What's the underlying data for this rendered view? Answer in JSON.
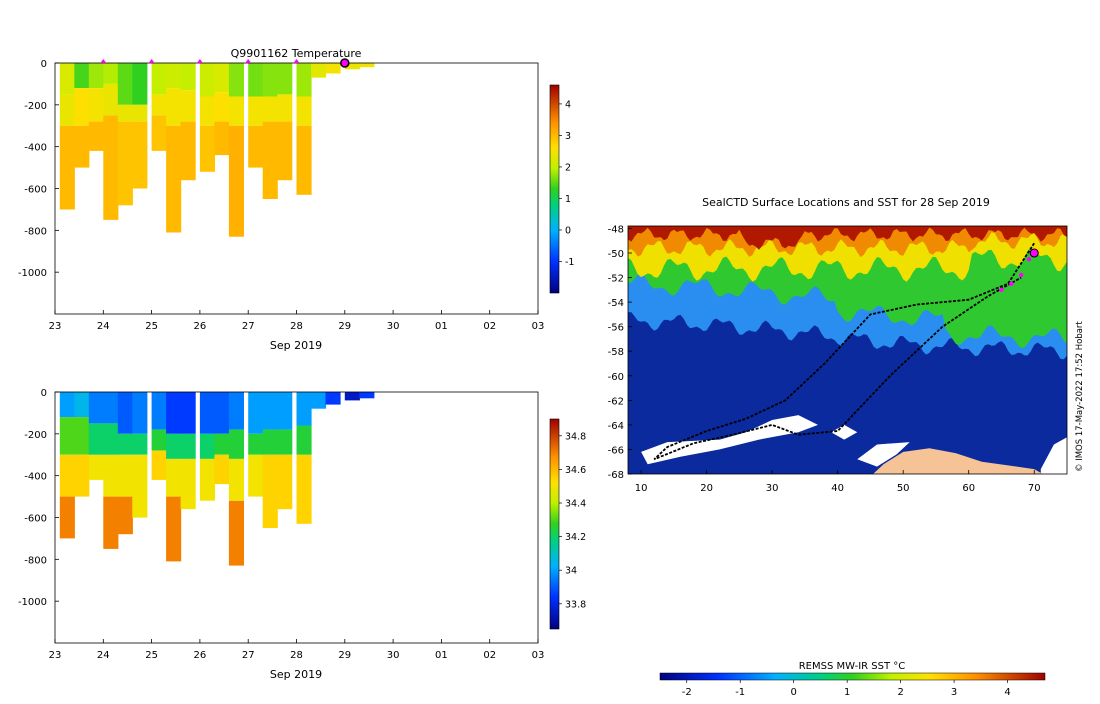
{
  "chart_data": [
    {
      "type": "heatmap",
      "title": "Q9901162  Temperature",
      "xlabel": "Sep 2019",
      "ylabel": "",
      "x_ticks": [
        "23",
        "24",
        "25",
        "26",
        "27",
        "28",
        "29",
        "30",
        "01",
        "02",
        "03"
      ],
      "y_ticks": [
        0,
        -200,
        -400,
        -600,
        -800,
        -1000
      ],
      "ylim": [
        -1200,
        0
      ],
      "colorbar": {
        "ticks": [
          4,
          3,
          2,
          1,
          0,
          -1
        ],
        "range": [
          -2,
          4.6
        ]
      },
      "profile_markers_day": [
        24,
        25,
        26,
        27,
        28
      ],
      "current_marker_day": 29,
      "profiles": [
        {
          "day": 23.1,
          "bottom": -700,
          "layers": [
            {
              "top": 0,
              "value": 2.2
            },
            {
              "top": -150,
              "value": 2.4
            },
            {
              "top": -300,
              "value": 3.0
            }
          ]
        },
        {
          "day": 23.4,
          "bottom": -500,
          "layers": [
            {
              "top": 0,
              "value": 1.4
            },
            {
              "top": -120,
              "value": 2.6
            },
            {
              "top": -300,
              "value": 3.0
            }
          ]
        },
        {
          "day": 23.7,
          "bottom": -420,
          "layers": [
            {
              "top": 0,
              "value": 1.8
            },
            {
              "top": -120,
              "value": 2.5
            },
            {
              "top": -280,
              "value": 3.0
            }
          ]
        },
        {
          "day": 24.0,
          "bottom": -750,
          "layers": [
            {
              "top": 0,
              "value": 1.9
            },
            {
              "top": -100,
              "value": 2.4
            },
            {
              "top": -250,
              "value": 3.0
            }
          ]
        },
        {
          "day": 24.3,
          "bottom": -680,
          "layers": [
            {
              "top": 0,
              "value": 1.5
            },
            {
              "top": -200,
              "value": 2.4
            },
            {
              "top": -280,
              "value": 2.9
            }
          ]
        },
        {
          "day": 24.6,
          "bottom": -600,
          "layers": [
            {
              "top": 0,
              "value": 1.3
            },
            {
              "top": -200,
              "value": 2.4
            },
            {
              "top": -280,
              "value": 2.9
            }
          ]
        },
        {
          "day": 25.0,
          "bottom": -420,
          "layers": [
            {
              "top": 0,
              "value": 2.0
            },
            {
              "top": -150,
              "value": 2.5
            },
            {
              "top": -250,
              "value": 2.9
            }
          ]
        },
        {
          "day": 25.3,
          "bottom": -810,
          "layers": [
            {
              "top": 0,
              "value": 2.1
            },
            {
              "top": -120,
              "value": 2.5
            },
            {
              "top": -300,
              "value": 3.0
            }
          ]
        },
        {
          "day": 25.6,
          "bottom": -560,
          "layers": [
            {
              "top": 0,
              "value": 2.0
            },
            {
              "top": -130,
              "value": 2.5
            },
            {
              "top": -280,
              "value": 3.0
            }
          ]
        },
        {
          "day": 26.0,
          "bottom": -520,
          "layers": [
            {
              "top": 0,
              "value": 2.1
            },
            {
              "top": -160,
              "value": 2.5
            },
            {
              "top": -300,
              "value": 2.9
            }
          ]
        },
        {
          "day": 26.3,
          "bottom": -440,
          "layers": [
            {
              "top": 0,
              "value": 2.2
            },
            {
              "top": -140,
              "value": 2.6
            },
            {
              "top": -280,
              "value": 3.0
            }
          ]
        },
        {
          "day": 26.6,
          "bottom": -830,
          "layers": [
            {
              "top": 0,
              "value": 1.7
            },
            {
              "top": -160,
              "value": 2.5
            },
            {
              "top": -300,
              "value": 3.1
            }
          ]
        },
        {
          "day": 27.0,
          "bottom": -500,
          "layers": [
            {
              "top": 0,
              "value": 1.6
            },
            {
              "top": -160,
              "value": 2.5
            },
            {
              "top": -300,
              "value": 3.0
            }
          ]
        },
        {
          "day": 27.3,
          "bottom": -650,
          "layers": [
            {
              "top": 0,
              "value": 1.7
            },
            {
              "top": -160,
              "value": 2.5
            },
            {
              "top": -280,
              "value": 3.0
            }
          ]
        },
        {
          "day": 27.6,
          "bottom": -560,
          "layers": [
            {
              "top": 0,
              "value": 1.7
            },
            {
              "top": -150,
              "value": 2.5
            },
            {
              "top": -280,
              "value": 3.0
            }
          ]
        },
        {
          "day": 28.0,
          "bottom": -630,
          "layers": [
            {
              "top": 0,
              "value": 1.8
            },
            {
              "top": -160,
              "value": 2.5
            },
            {
              "top": -300,
              "value": 3.0
            }
          ]
        },
        {
          "day": 28.3,
          "bottom": -70,
          "layers": [
            {
              "top": 0,
              "value": 2.3
            }
          ]
        },
        {
          "day": 28.6,
          "bottom": -50,
          "layers": [
            {
              "top": 0,
              "value": 2.5
            }
          ]
        },
        {
          "day": 29.0,
          "bottom": -30,
          "layers": [
            {
              "top": 0,
              "value": 2.4
            }
          ]
        },
        {
          "day": 29.3,
          "bottom": -20,
          "layers": [
            {
              "top": 0,
              "value": 2.5
            }
          ]
        }
      ]
    },
    {
      "type": "heatmap",
      "title": "",
      "xlabel": "Sep 2019",
      "ylabel": "",
      "x_ticks": [
        "23",
        "24",
        "25",
        "26",
        "27",
        "28",
        "29",
        "30",
        "01",
        "02",
        "03"
      ],
      "y_ticks": [
        0,
        -200,
        -400,
        -600,
        -800,
        -1000
      ],
      "ylim": [
        -1200,
        0
      ],
      "colorbar": {
        "ticks": [
          34.8,
          34.6,
          34.4,
          34.2,
          34,
          33.8
        ],
        "range": [
          33.65,
          34.9
        ]
      },
      "profiles": [
        {
          "day": 23.1,
          "bottom": -700,
          "layers": [
            {
              "top": 0,
              "value": 34.0
            },
            {
              "top": -120,
              "value": 34.3
            },
            {
              "top": -300,
              "value": 34.55
            },
            {
              "top": -500,
              "value": 34.7
            }
          ]
        },
        {
          "day": 23.4,
          "bottom": -500,
          "layers": [
            {
              "top": 0,
              "value": 34.05
            },
            {
              "top": -120,
              "value": 34.3
            },
            {
              "top": -300,
              "value": 34.55
            }
          ]
        },
        {
          "day": 23.7,
          "bottom": -420,
          "layers": [
            {
              "top": 0,
              "value": 33.95
            },
            {
              "top": -150,
              "value": 34.2
            },
            {
              "top": -300,
              "value": 34.5
            }
          ]
        },
        {
          "day": 24.0,
          "bottom": -750,
          "layers": [
            {
              "top": 0,
              "value": 33.95
            },
            {
              "top": -150,
              "value": 34.2
            },
            {
              "top": -300,
              "value": 34.5
            },
            {
              "top": -500,
              "value": 34.7
            }
          ]
        },
        {
          "day": 24.3,
          "bottom": -680,
          "layers": [
            {
              "top": 0,
              "value": 33.9
            },
            {
              "top": -200,
              "value": 34.2
            },
            {
              "top": -300,
              "value": 34.5
            },
            {
              "top": -500,
              "value": 34.7
            }
          ]
        },
        {
          "day": 24.6,
          "bottom": -600,
          "layers": [
            {
              "top": 0,
              "value": 33.95
            },
            {
              "top": -200,
              "value": 34.2
            },
            {
              "top": -300,
              "value": 34.5
            }
          ]
        },
        {
          "day": 25.0,
          "bottom": -420,
          "layers": [
            {
              "top": 0,
              "value": 33.95
            },
            {
              "top": -180,
              "value": 34.25
            },
            {
              "top": -280,
              "value": 34.55
            }
          ]
        },
        {
          "day": 25.3,
          "bottom": -810,
          "layers": [
            {
              "top": 0,
              "value": 33.85
            },
            {
              "top": -200,
              "value": 34.2
            },
            {
              "top": -320,
              "value": 34.5
            },
            {
              "top": -500,
              "value": 34.7
            }
          ]
        },
        {
          "day": 25.6,
          "bottom": -560,
          "layers": [
            {
              "top": 0,
              "value": 33.85
            },
            {
              "top": -200,
              "value": 34.2
            },
            {
              "top": -320,
              "value": 34.5
            }
          ]
        },
        {
          "day": 26.0,
          "bottom": -520,
          "layers": [
            {
              "top": 0,
              "value": 33.9
            },
            {
              "top": -200,
              "value": 34.2
            },
            {
              "top": -320,
              "value": 34.5
            }
          ]
        },
        {
          "day": 26.3,
          "bottom": -440,
          "layers": [
            {
              "top": 0,
              "value": 33.9
            },
            {
              "top": -200,
              "value": 34.25
            },
            {
              "top": -300,
              "value": 34.55
            }
          ]
        },
        {
          "day": 26.6,
          "bottom": -830,
          "layers": [
            {
              "top": 0,
              "value": 33.95
            },
            {
              "top": -180,
              "value": 34.25
            },
            {
              "top": -320,
              "value": 34.5
            },
            {
              "top": -520,
              "value": 34.7
            }
          ]
        },
        {
          "day": 27.0,
          "bottom": -500,
          "layers": [
            {
              "top": 0,
              "value": 34.0
            },
            {
              "top": -200,
              "value": 34.25
            },
            {
              "top": -300,
              "value": 34.5
            }
          ]
        },
        {
          "day": 27.3,
          "bottom": -650,
          "layers": [
            {
              "top": 0,
              "value": 34.0
            },
            {
              "top": -180,
              "value": 34.25
            },
            {
              "top": -300,
              "value": 34.55
            }
          ]
        },
        {
          "day": 27.6,
          "bottom": -560,
          "layers": [
            {
              "top": 0,
              "value": 34.0
            },
            {
              "top": -180,
              "value": 34.25
            },
            {
              "top": -300,
              "value": 34.55
            }
          ]
        },
        {
          "day": 28.0,
          "bottom": -630,
          "layers": [
            {
              "top": 0,
              "value": 34.0
            },
            {
              "top": -160,
              "value": 34.25
            },
            {
              "top": -300,
              "value": 34.55
            }
          ]
        },
        {
          "day": 28.3,
          "bottom": -80,
          "layers": [
            {
              "top": 0,
              "value": 34.0
            }
          ]
        },
        {
          "day": 28.6,
          "bottom": -60,
          "layers": [
            {
              "top": 0,
              "value": 33.85
            }
          ]
        },
        {
          "day": 29.0,
          "bottom": -40,
          "layers": [
            {
              "top": 0,
              "value": 33.75
            }
          ]
        },
        {
          "day": 29.3,
          "bottom": -30,
          "layers": [
            {
              "top": 0,
              "value": 33.85
            }
          ]
        }
      ]
    },
    {
      "type": "heatmap",
      "title": "SealCTD Surface Locations and SST for 28 Sep 2019",
      "xlabel": "",
      "ylabel": "",
      "x_ticks": [
        10,
        20,
        30,
        40,
        50,
        60,
        70
      ],
      "y_ticks": [
        -48,
        -50,
        -52,
        -54,
        -56,
        -58,
        -60,
        -62,
        -64,
        -66,
        -68
      ],
      "xlim": [
        8,
        75
      ],
      "ylim": [
        -68,
        -47.8
      ],
      "colorbar": {
        "label": "REMSS MW-IR SST °C",
        "ticks": [
          -2,
          -1,
          0,
          1,
          2,
          3,
          4
        ],
        "range": [
          -2.5,
          4.7
        ]
      },
      "sst_front_lat": [
        {
          "lon": 8,
          "lat": -55.5
        },
        {
          "lon": 20,
          "lat": -55.8
        },
        {
          "lon": 35,
          "lat": -56.5
        },
        {
          "lon": 45,
          "lat": -57.2
        },
        {
          "lon": 55,
          "lat": -57.6
        },
        {
          "lon": 65,
          "lat": -57.8
        },
        {
          "lon": 75,
          "lat": -58.0
        }
      ],
      "track": [
        {
          "lon": 70,
          "lat": -49.2
        },
        {
          "lon": 66,
          "lat": -52.5
        },
        {
          "lon": 60,
          "lat": -53.8
        },
        {
          "lon": 52,
          "lat": -54.2
        },
        {
          "lon": 45,
          "lat": -55.0
        },
        {
          "lon": 38,
          "lat": -59.0
        },
        {
          "lon": 32,
          "lat": -62.0
        },
        {
          "lon": 26,
          "lat": -63.5
        },
        {
          "lon": 20,
          "lat": -64.5
        },
        {
          "lon": 14,
          "lat": -65.8
        },
        {
          "lon": 12,
          "lat": -66.8
        },
        {
          "lon": 18,
          "lat": -65.5
        },
        {
          "lon": 24,
          "lat": -64.8
        },
        {
          "lon": 30,
          "lat": -64.0
        },
        {
          "lon": 34,
          "lat": -64.8
        },
        {
          "lon": 40,
          "lat": -64.5
        },
        {
          "lon": 48,
          "lat": -60.0
        },
        {
          "lon": 56,
          "lat": -56.0
        },
        {
          "lon": 63,
          "lat": -53.5
        },
        {
          "lon": 68,
          "lat": -52.0
        }
      ],
      "recent_points": [
        {
          "lon": 65,
          "lat": -53
        },
        {
          "lon": 66.5,
          "lat": -52.5
        },
        {
          "lon": 68,
          "lat": -51.8
        },
        {
          "lon": 69.2,
          "lat": -50.5
        },
        {
          "lon": 70,
          "lat": -49.9
        }
      ],
      "current_point": {
        "lon": 70,
        "lat": -50
      },
      "side_label": "© IMOS 17-May-2022 17:52 Hobart"
    }
  ],
  "colors": {
    "land": "#f5c396",
    "ocean_ice": "#0a2a9e",
    "ice": "#ffffff",
    "marker": "#ff00ff",
    "track": "#000000"
  }
}
